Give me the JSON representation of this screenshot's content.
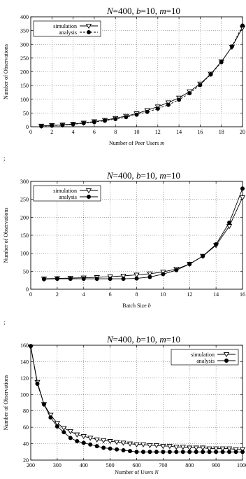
{
  "separator": ";",
  "chart_data": [
    {
      "type": "line",
      "title": "N=400, b=10, m=10",
      "xlabel": "Number of Peer Users m",
      "ylabel": "Number of Observations",
      "xlim": [
        0,
        20
      ],
      "ylim": [
        0,
        400
      ],
      "xticks": [
        0,
        2,
        4,
        6,
        8,
        10,
        12,
        14,
        16,
        18,
        20
      ],
      "yticks": [
        0,
        50,
        100,
        150,
        200,
        250,
        300,
        350,
        400
      ],
      "grid": true,
      "legend": "top-left",
      "x": [
        1,
        2,
        3,
        4,
        5,
        6,
        7,
        8,
        9,
        10,
        11,
        12,
        13,
        14,
        15,
        16,
        17,
        18,
        19,
        20
      ],
      "series": [
        {
          "name": "simulation",
          "marker": "triangle-down",
          "dash": "solid",
          "values": [
            3,
            5,
            7,
            10,
            14,
            19,
            24,
            31,
            39,
            48,
            60,
            73,
            88,
            105,
            128,
            156,
            192,
            237,
            290,
            360
          ]
        },
        {
          "name": "analysis",
          "marker": "circle",
          "dash": "dashed",
          "values": [
            2,
            4,
            6,
            9,
            13,
            17,
            22,
            28,
            35,
            44,
            54,
            66,
            80,
            98,
            122,
            152,
            190,
            235,
            292,
            368
          ]
        }
      ]
    },
    {
      "type": "line",
      "title": "N=400, b=10, m=10",
      "xlabel": "Batch Size b",
      "ylabel": "Number of Observations",
      "xlim": [
        0,
        16
      ],
      "ylim": [
        0,
        300
      ],
      "xticks": [
        0,
        2,
        4,
        6,
        8,
        10,
        12,
        14,
        16
      ],
      "yticks": [
        0,
        50,
        100,
        150,
        200,
        250,
        300
      ],
      "grid": true,
      "legend": "top-left",
      "x": [
        1,
        2,
        3,
        4,
        5,
        6,
        7,
        8,
        9,
        10,
        11,
        12,
        13,
        14,
        15,
        16
      ],
      "series": [
        {
          "name": "simulation",
          "marker": "triangle-down",
          "dash": "solid",
          "values": [
            29,
            30,
            31,
            32,
            33,
            35,
            37,
            40,
            43,
            48,
            56,
            70,
            92,
            122,
            175,
            255
          ]
        },
        {
          "name": "analysis",
          "marker": "circle",
          "dash": "solid",
          "values": [
            28,
            29,
            29,
            29,
            29,
            29,
            29,
            30,
            34,
            42,
            53,
            70,
            92,
            125,
            185,
            280
          ]
        }
      ]
    },
    {
      "type": "line",
      "title": "N=400, b=10, m=10",
      "xlabel": "Number of Users N",
      "ylabel": "Number of Observations",
      "xlim": [
        200,
        1000
      ],
      "ylim": [
        20,
        160
      ],
      "xticks": [
        200,
        300,
        400,
        500,
        600,
        700,
        800,
        900,
        1000
      ],
      "yticks": [
        20,
        40,
        60,
        80,
        100,
        120,
        140,
        160
      ],
      "grid": true,
      "legend": "top-right",
      "x": [
        200,
        225,
        250,
        275,
        300,
        325,
        350,
        375,
        400,
        425,
        450,
        475,
        500,
        525,
        550,
        575,
        600,
        625,
        650,
        675,
        700,
        725,
        750,
        775,
        800,
        825,
        850,
        875,
        900,
        925,
        950,
        975,
        1000
      ],
      "series": [
        {
          "name": "simulation",
          "marker": "triangle-down",
          "dash": "solid",
          "values": [
            158,
            115,
            88,
            75,
            65,
            59,
            55,
            51,
            49,
            47,
            45,
            44,
            43,
            42,
            41,
            40,
            39,
            39,
            38,
            38,
            37,
            37,
            36,
            36,
            35,
            35,
            35,
            34,
            34,
            34,
            34,
            33,
            33
          ]
        },
        {
          "name": "analysis",
          "marker": "circle",
          "dash": "solid",
          "values": [
            159,
            113,
            88,
            72,
            61,
            54,
            47,
            43,
            41,
            39,
            37,
            35,
            34,
            33,
            32,
            31,
            30,
            30,
            30,
            30,
            30,
            30,
            30,
            30,
            30,
            30,
            30,
            30,
            30,
            30,
            30,
            30,
            30
          ]
        }
      ]
    }
  ]
}
